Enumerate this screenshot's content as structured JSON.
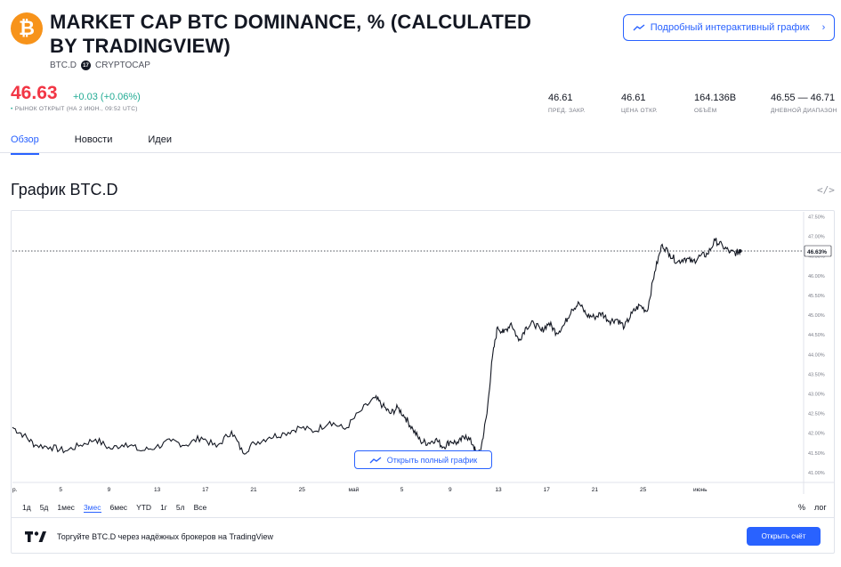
{
  "header": {
    "title": "MARKET CAP BTC DOMINANCE, % (CALCULATED BY TRADINGVIEW)",
    "symbol": "BTC.D",
    "exchange": "CRYPTOCAP",
    "logo_glyph": "₿",
    "logo_color": "#f7931a",
    "interactive_button": "Подробный интерактивный график"
  },
  "quote": {
    "price": "46.63",
    "change": "+0.03",
    "change_pct": "(+0.06%)",
    "market_dot": "•",
    "market_status": "РЫНОК ОТКРЫТ (НА 2 ИЮН., 09:52 UTC)",
    "down_color": "#f23645",
    "up_color": "#22ab94"
  },
  "stats": [
    {
      "value": "46.61",
      "label": "ПРЕД. ЗАКР."
    },
    {
      "value": "46.61",
      "label": "ЦЕНА ОТКР."
    },
    {
      "value": "164.136B",
      "label": "ОБЪЁМ"
    },
    {
      "value": "46.55 — 46.71",
      "label": "ДНЕВНОЙ ДИАПАЗОН"
    }
  ],
  "tabs": [
    {
      "label": "Обзор",
      "active": true
    },
    {
      "label": "Новости",
      "active": false
    },
    {
      "label": "Идеи",
      "active": false
    }
  ],
  "chart_section": {
    "title": "График BTC.D",
    "embed_glyph": "</>",
    "open_full_button": "Открыть полный график",
    "accent_color": "#2962ff"
  },
  "chart_data": {
    "type": "line",
    "title": "",
    "xlabel": "",
    "ylabel": "",
    "ylim": [
      40.75,
      47.625
    ],
    "y_ticks": [
      "47.50%",
      "47.00%",
      "46.50%",
      "46.00%",
      "45.50%",
      "45.00%",
      "44.50%",
      "44.00%",
      "43.50%",
      "43.00%",
      "42.50%",
      "42.00%",
      "41.50%",
      "41.00%"
    ],
    "x_ticks": [
      "р.",
      "5",
      "9",
      "13",
      "17",
      "21",
      "25",
      "май",
      "5",
      "9",
      "13",
      "17",
      "21",
      "25",
      "июнь"
    ],
    "last_price_label": "46.63%",
    "last_price": 46.63,
    "series": [
      {
        "color": "#131722",
        "points": [
          [
            0,
            42.15
          ],
          [
            1.5,
            41.95
          ],
          [
            3,
            41.7
          ],
          [
            5,
            41.65
          ],
          [
            7,
            41.55
          ],
          [
            9,
            41.7
          ],
          [
            11,
            41.85
          ],
          [
            13,
            41.6
          ],
          [
            15,
            41.75
          ],
          [
            17,
            41.55
          ],
          [
            19,
            41.65
          ],
          [
            21,
            41.8
          ],
          [
            23,
            41.7
          ],
          [
            25,
            41.9
          ],
          [
            27,
            41.65
          ],
          [
            29,
            42.05
          ],
          [
            30.5,
            41.5
          ],
          [
            32,
            41.75
          ],
          [
            34,
            41.9
          ],
          [
            36,
            42.0
          ],
          [
            38,
            42.15
          ],
          [
            40,
            42.05
          ],
          [
            42,
            42.3
          ],
          [
            44,
            42.1
          ],
          [
            46,
            42.55
          ],
          [
            48,
            42.9
          ],
          [
            49,
            42.7
          ],
          [
            50,
            42.5
          ],
          [
            51,
            42.65
          ],
          [
            52,
            42.4
          ],
          [
            53,
            42.1
          ],
          [
            54,
            41.8
          ],
          [
            55,
            41.75
          ],
          [
            56,
            41.85
          ],
          [
            57,
            41.65
          ],
          [
            58,
            41.8
          ],
          [
            59,
            41.75
          ],
          [
            60,
            41.95
          ],
          [
            61,
            41.7
          ],
          [
            61.5,
            41.4
          ],
          [
            62,
            41.6
          ],
          [
            62.8,
            42.5
          ],
          [
            63.5,
            43.9
          ],
          [
            64.2,
            44.7
          ],
          [
            65,
            44.55
          ],
          [
            66,
            44.8
          ],
          [
            67,
            44.35
          ],
          [
            68,
            44.7
          ],
          [
            69,
            44.8
          ],
          [
            70,
            44.6
          ],
          [
            71,
            44.8
          ],
          [
            72,
            44.55
          ],
          [
            73,
            44.75
          ],
          [
            74,
            45.15
          ],
          [
            75,
            45.3
          ],
          [
            76,
            45.0
          ],
          [
            77,
            44.95
          ],
          [
            78,
            45.05
          ],
          [
            79,
            44.85
          ],
          [
            80,
            44.9
          ],
          [
            81,
            44.7
          ],
          [
            82,
            45.05
          ],
          [
            83,
            45.25
          ],
          [
            84,
            45.1
          ],
          [
            85,
            46.1
          ],
          [
            86,
            46.8
          ],
          [
            87,
            46.55
          ],
          [
            88,
            46.35
          ],
          [
            89,
            46.45
          ],
          [
            90,
            46.35
          ],
          [
            91,
            46.5
          ],
          [
            92,
            46.55
          ],
          [
            93,
            46.9
          ],
          [
            94,
            46.75
          ],
          [
            95,
            46.6
          ],
          [
            95.8,
            46.58
          ],
          [
            96.3,
            46.63
          ]
        ]
      }
    ]
  },
  "time_ranges": [
    {
      "label": "1д",
      "active": false
    },
    {
      "label": "5д",
      "active": false
    },
    {
      "label": "1мес",
      "active": false
    },
    {
      "label": "3мес",
      "active": true
    },
    {
      "label": "6мес",
      "active": false
    },
    {
      "label": "YTD",
      "active": false
    },
    {
      "label": "1г",
      "active": false
    },
    {
      "label": "5л",
      "active": false
    },
    {
      "label": "Все",
      "active": false
    }
  ],
  "scale_options": [
    "%",
    "лог"
  ],
  "footer": {
    "broker_text": "Торгуйте BTC.D через надёжных брокеров на TradingView",
    "open_account_button": "Открыть счёт"
  }
}
